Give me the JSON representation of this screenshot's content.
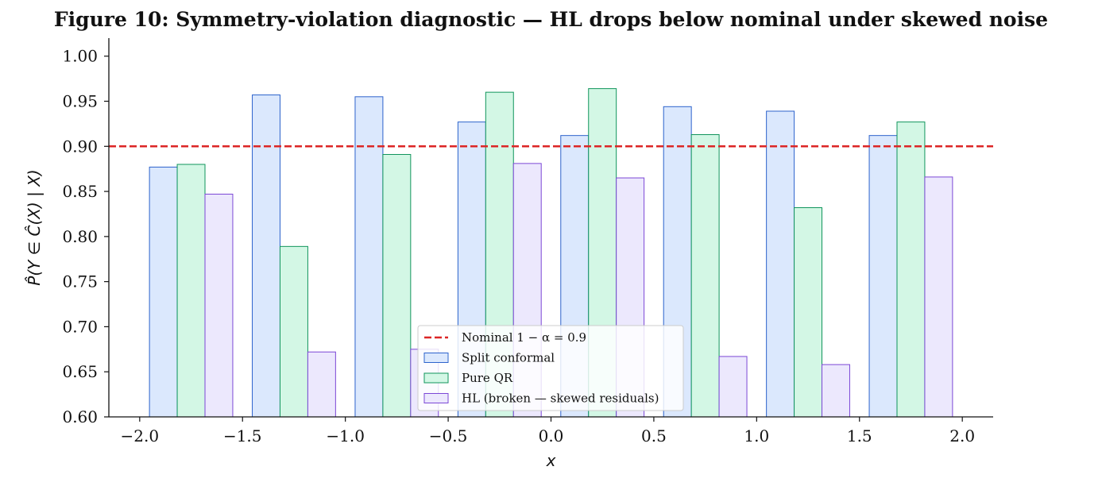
{
  "title": "Figure 10: Symmetry-violation diagnostic — HL drops below nominal under skewed noise",
  "chart_data": {
    "type": "bar",
    "x": [
      -1.75,
      -1.25,
      -0.75,
      -0.25,
      0.25,
      0.75,
      1.25,
      1.75
    ],
    "series": [
      {
        "name": "Split conformal",
        "values": [
          0.877,
          0.957,
          0.955,
          0.927,
          0.912,
          0.944,
          0.939,
          0.912
        ],
        "fill": "#dbe8fd",
        "stroke": "#2d63cc"
      },
      {
        "name": "Pure QR",
        "values": [
          0.88,
          0.789,
          0.891,
          0.96,
          0.964,
          0.913,
          0.832,
          0.927
        ],
        "fill": "#d3f7e5",
        "stroke": "#11955c"
      },
      {
        "name": "HL (broken — skewed residuals)",
        "values": [
          0.847,
          0.672,
          0.675,
          0.881,
          0.865,
          0.667,
          0.658,
          0.866
        ],
        "fill": "#ece8fd",
        "stroke": "#7c47d6"
      }
    ],
    "reference_line": {
      "name": "Nominal 1 − α = 0.9",
      "y": 0.9,
      "color": "#dc2626",
      "style": "dashed"
    },
    "xlabel": "x",
    "ylabel": "P̂(Y ∈ Ĉ(X) | X)",
    "xlim": [
      -2.15,
      2.15
    ],
    "ylim": [
      0.6,
      1.02
    ],
    "xticks": [
      "−2.0",
      "−1.5",
      "−1.0",
      "−0.5",
      "0.0",
      "0.5",
      "1.0",
      "1.5",
      "2.0"
    ],
    "xtick_values": [
      -2.0,
      -1.5,
      -1.0,
      -0.5,
      0.0,
      0.5,
      1.0,
      1.5,
      2.0
    ],
    "yticks": [
      "0.60",
      "0.65",
      "0.70",
      "0.75",
      "0.80",
      "0.85",
      "0.90",
      "0.95",
      "1.00"
    ],
    "ytick_values": [
      0.6,
      0.65,
      0.7,
      0.75,
      0.8,
      0.85,
      0.9,
      0.95,
      1.0
    ],
    "bar_width": 0.135,
    "legend_position": "lower center",
    "grid": false
  }
}
